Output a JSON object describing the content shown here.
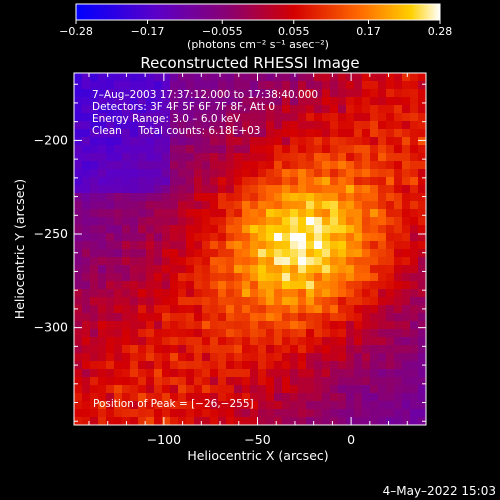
{
  "chart_data": {
    "type": "heatmap",
    "title": "Reconstructed RHESSI Image",
    "xlabel": "Heliocentric X (arcsec)",
    "ylabel": "Heliocentric Y (arcsec)",
    "xlim": [
      -148,
      40
    ],
    "ylim": [
      -352,
      -164
    ],
    "x_ticks": [
      -100,
      -50,
      0
    ],
    "x_tick_labels": [
      "−100",
      "−50",
      "0"
    ],
    "y_ticks": [
      -200,
      -250,
      -300
    ],
    "y_tick_labels": [
      "−200",
      "−250",
      "−300"
    ],
    "colorbar": {
      "min": -0.28,
      "max": 0.28,
      "ticks": [
        -0.28,
        -0.17,
        -0.055,
        0.055,
        0.17,
        0.28
      ],
      "tick_labels": [
        "−0.28",
        "−0.17",
        "−0.055",
        "0.055",
        "0.17",
        "0.28"
      ],
      "unit_label": "(photons cm⁻² s⁻¹ asec⁻²)"
    },
    "annotations": [
      "7–Aug–2003 17:37:12.000 to 17:38:40.000",
      "Detectors: 3F 4F 5F 6F 7F 8F, Att 0",
      "Energy Range: 3.0 – 6.0 keV",
      "Clean     Total counts: 6.18E+03"
    ],
    "peak_label": "Position of Peak = [−26,−255]",
    "peak": {
      "x": -26,
      "y": -255
    },
    "date_stamp": "4–May–2022 15:03",
    "colors": [
      "#0000ff",
      "#6a00c8",
      "#8a0078",
      "#c80000",
      "#ff5000",
      "#ffb000",
      "#ffffff"
    ]
  }
}
